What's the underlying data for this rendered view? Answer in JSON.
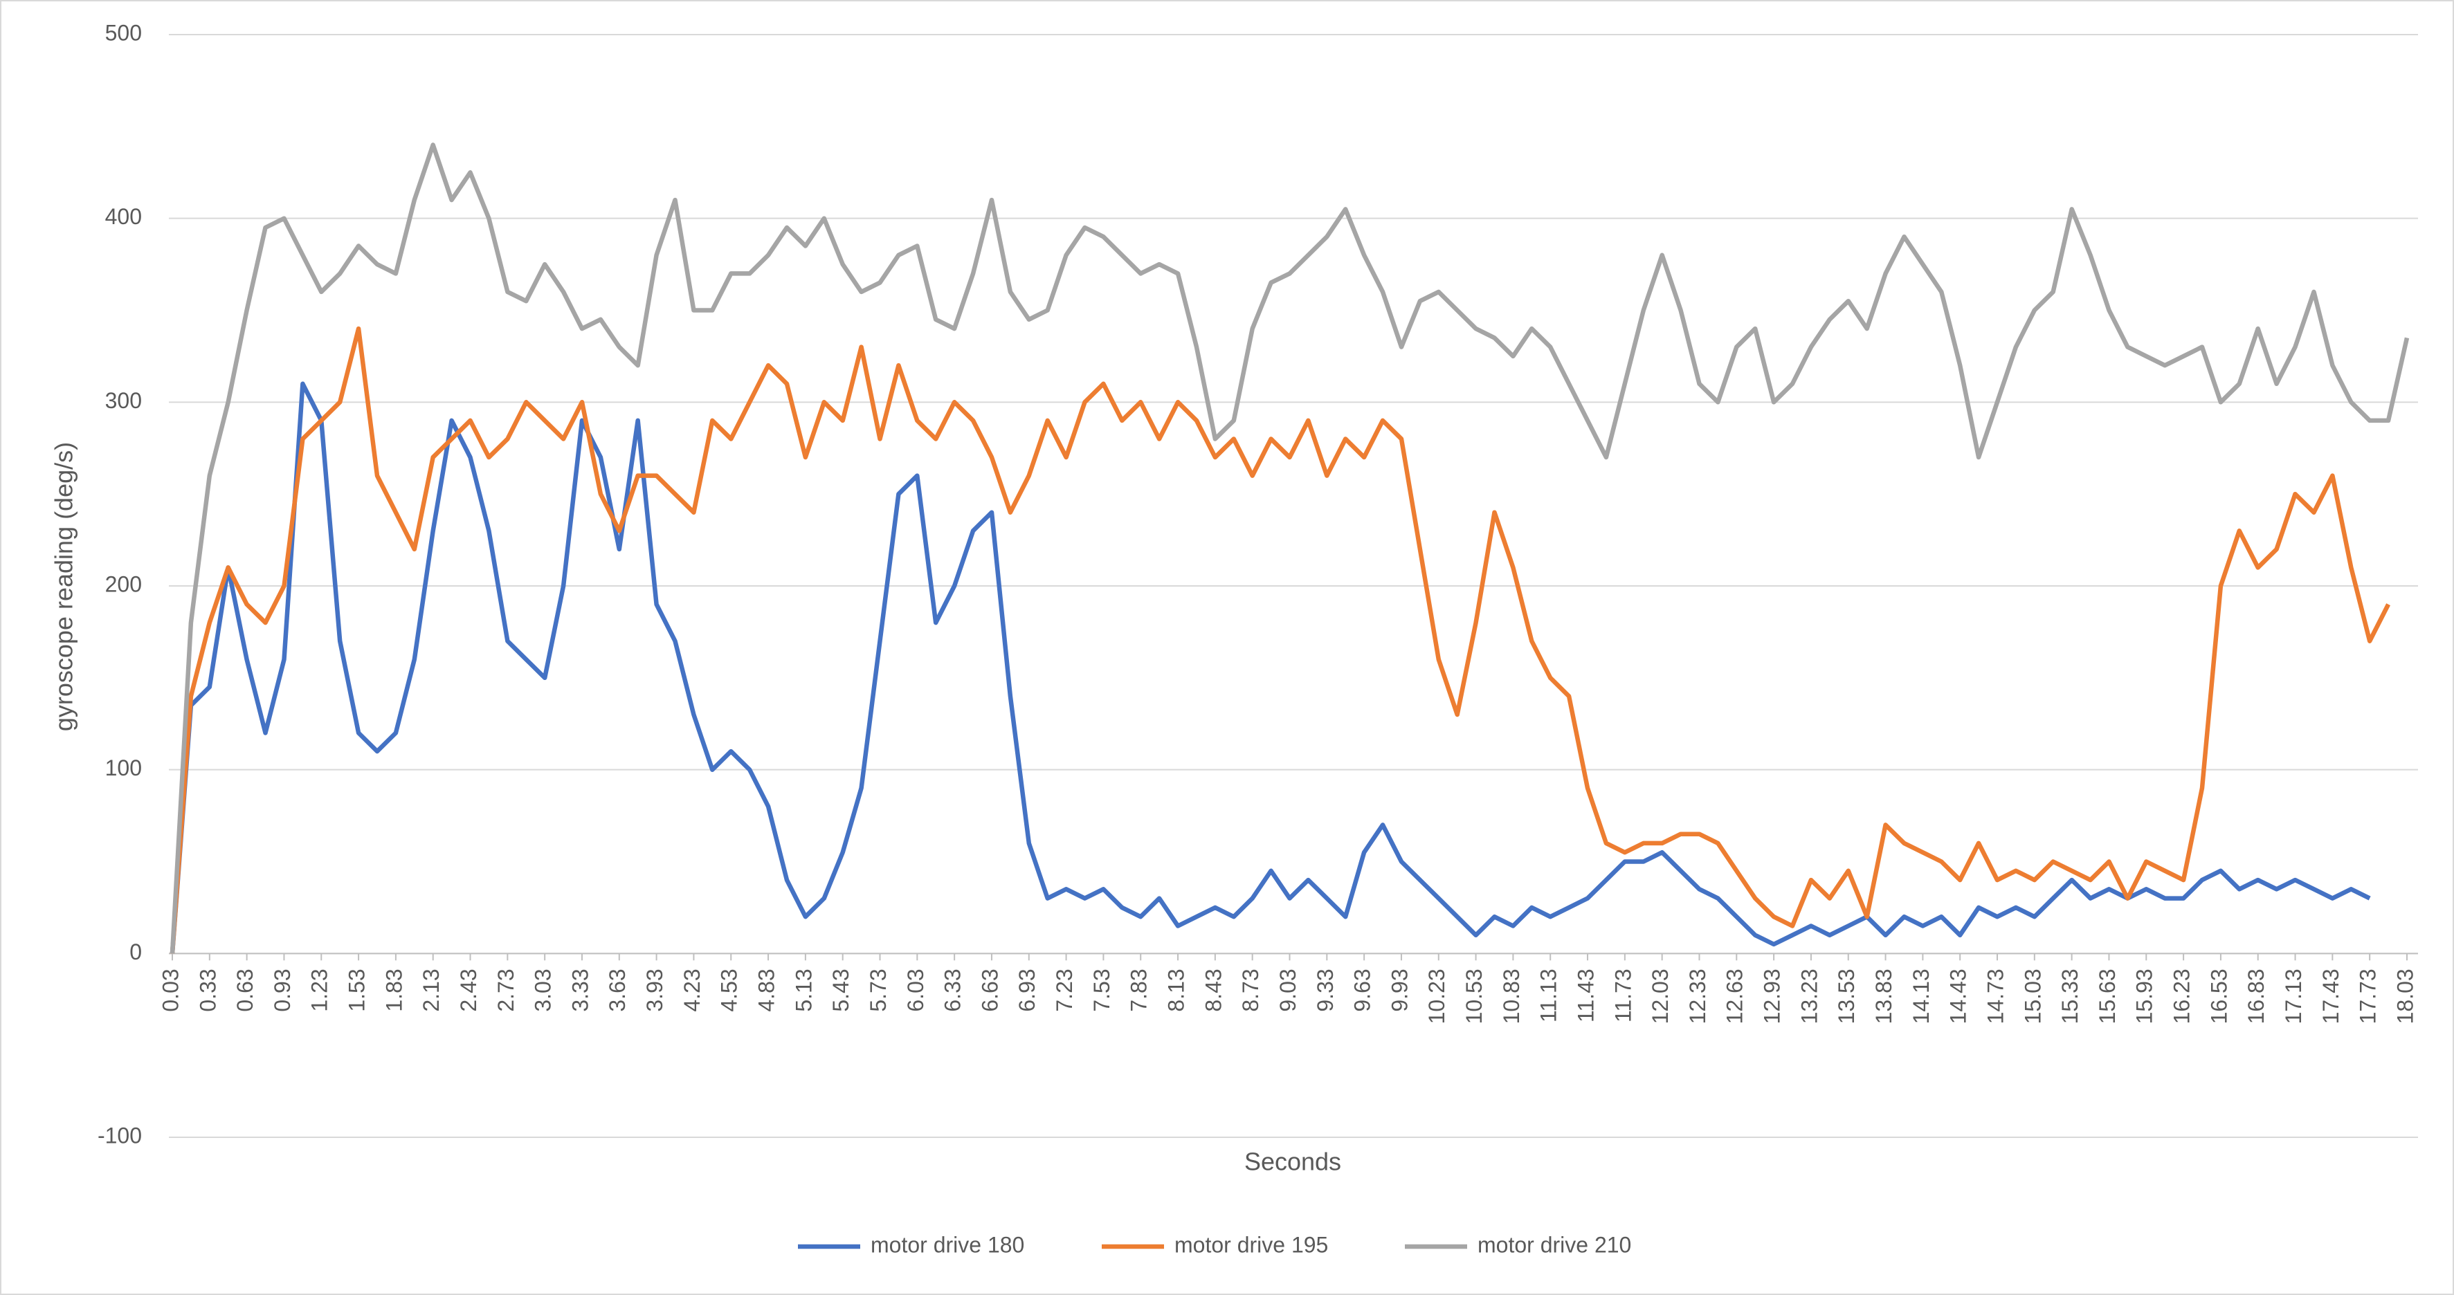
{
  "chart_data": {
    "type": "line",
    "x_label": "Seconds",
    "y_label": "gyroscope reading (deg/s)",
    "x": [
      0.03,
      0.18,
      0.33,
      0.48,
      0.63,
      0.78,
      0.93,
      1.08,
      1.23,
      1.38,
      1.53,
      1.68,
      1.83,
      1.98,
      2.13,
      2.28,
      2.43,
      2.58,
      2.73,
      2.88,
      3.03,
      3.18,
      3.33,
      3.48,
      3.63,
      3.78,
      3.93,
      4.08,
      4.23,
      4.38,
      4.53,
      4.68,
      4.83,
      4.98,
      5.13,
      5.28,
      5.43,
      5.58,
      5.73,
      5.88,
      6.03,
      6.18,
      6.33,
      6.48,
      6.63,
      6.78,
      6.93,
      7.08,
      7.23,
      7.38,
      7.53,
      7.68,
      7.83,
      7.98,
      8.13,
      8.28,
      8.43,
      8.58,
      8.73,
      8.88,
      9.03,
      9.18,
      9.33,
      9.48,
      9.63,
      9.78,
      9.93,
      10.08,
      10.23,
      10.38,
      10.53,
      10.68,
      10.83,
      10.98,
      11.13,
      11.28,
      11.43,
      11.58,
      11.73,
      11.88,
      12.03,
      12.18,
      12.33,
      12.48,
      12.63,
      12.78,
      12.93,
      13.08,
      13.23,
      13.38,
      13.53,
      13.68,
      13.83,
      13.98,
      14.13,
      14.28,
      14.43,
      14.58,
      14.73,
      14.88,
      15.03,
      15.18,
      15.33,
      15.48,
      15.63,
      15.78,
      15.93,
      16.08,
      16.23,
      16.38,
      16.53,
      16.68,
      16.83,
      16.98,
      17.13,
      17.28,
      17.43,
      17.58,
      17.73,
      17.88,
      18.03
    ],
    "series": [
      {
        "name": "motor drive 180",
        "color": "#4472c4",
        "values": [
          0,
          135,
          145,
          210,
          160,
          120,
          160,
          310,
          290,
          170,
          120,
          110,
          120,
          160,
          230,
          290,
          270,
          230,
          170,
          160,
          150,
          200,
          290,
          270,
          220,
          290,
          190,
          170,
          130,
          100,
          110,
          100,
          80,
          40,
          20,
          30,
          55,
          90,
          170,
          250,
          260,
          180,
          200,
          230,
          240,
          140,
          60,
          30,
          35,
          30,
          35,
          25,
          20,
          30,
          15,
          20,
          25,
          20,
          30,
          45,
          30,
          40,
          30,
          20,
          55,
          70,
          50,
          40,
          30,
          20,
          10,
          20,
          15,
          25,
          20,
          25,
          30,
          40,
          50,
          50,
          55,
          45,
          35,
          30,
          20,
          10,
          5,
          10,
          15,
          10,
          15,
          20,
          10,
          20,
          15,
          20,
          10,
          25,
          20,
          25,
          20,
          30,
          40,
          30,
          35,
          30,
          35,
          30,
          30,
          40,
          45,
          35,
          40,
          35,
          40,
          35,
          30,
          35,
          30,
          null,
          null
        ]
      },
      {
        "name": "motor drive 195",
        "color": "#ed7d31",
        "values": [
          0,
          140,
          180,
          210,
          190,
          180,
          200,
          280,
          290,
          300,
          340,
          260,
          240,
          220,
          270,
          280,
          290,
          270,
          280,
          300,
          290,
          280,
          300,
          250,
          230,
          260,
          260,
          250,
          240,
          290,
          280,
          300,
          320,
          310,
          270,
          300,
          290,
          330,
          280,
          320,
          290,
          280,
          300,
          290,
          270,
          240,
          260,
          290,
          270,
          300,
          310,
          290,
          300,
          280,
          300,
          290,
          270,
          280,
          260,
          280,
          270,
          290,
          260,
          280,
          270,
          290,
          280,
          220,
          160,
          130,
          180,
          240,
          210,
          170,
          150,
          140,
          90,
          60,
          55,
          60,
          60,
          65,
          65,
          60,
          45,
          30,
          20,
          15,
          40,
          30,
          45,
          20,
          70,
          60,
          55,
          50,
          40,
          60,
          40,
          45,
          40,
          50,
          45,
          40,
          50,
          30,
          50,
          45,
          40,
          90,
          200,
          230,
          210,
          220,
          250,
          240,
          260,
          210,
          170,
          190,
          null
        ]
      },
      {
        "name": "motor drive 210",
        "color": "#a5a5a5",
        "values": [
          0,
          180,
          260,
          300,
          350,
          395,
          400,
          380,
          360,
          370,
          385,
          375,
          370,
          410,
          440,
          410,
          425,
          400,
          360,
          355,
          375,
          360,
          340,
          345,
          330,
          320,
          380,
          410,
          350,
          350,
          370,
          370,
          380,
          395,
          385,
          400,
          375,
          360,
          365,
          380,
          385,
          345,
          340,
          370,
          410,
          360,
          345,
          350,
          380,
          395,
          390,
          380,
          370,
          375,
          370,
          330,
          280,
          290,
          340,
          365,
          370,
          380,
          390,
          405,
          380,
          360,
          330,
          355,
          360,
          350,
          340,
          335,
          325,
          340,
          330,
          310,
          290,
          270,
          310,
          350,
          380,
          350,
          310,
          300,
          330,
          340,
          300,
          310,
          330,
          345,
          355,
          340,
          370,
          390,
          375,
          360,
          320,
          270,
          300,
          330,
          350,
          360,
          405,
          380,
          350,
          330,
          325,
          320,
          325,
          330,
          300,
          310,
          340,
          310,
          330,
          360,
          320,
          300,
          290,
          290,
          335
        ]
      }
    ],
    "xlim": [
      0.03,
      18.03
    ],
    "xticks": [
      0.03,
      0.33,
      0.63,
      0.93,
      1.23,
      1.53,
      1.83,
      2.13,
      2.43,
      2.73,
      3.03,
      3.33,
      3.63,
      3.93,
      4.23,
      4.53,
      4.83,
      5.13,
      5.43,
      5.73,
      6.03,
      6.33,
      6.63,
      6.93,
      7.23,
      7.53,
      7.83,
      8.13,
      8.43,
      8.73,
      9.03,
      9.33,
      9.63,
      9.93,
      10.23,
      10.53,
      10.83,
      11.13,
      11.43,
      11.73,
      12.03,
      12.33,
      12.63,
      12.93,
      13.23,
      13.53,
      13.83,
      14.13,
      14.43,
      14.73,
      15.03,
      15.33,
      15.63,
      15.93,
      16.23,
      16.53,
      16.83,
      17.13,
      17.43,
      17.73,
      18.03
    ],
    "ylim": [
      -100,
      500
    ],
    "yticks": [
      -100,
      0,
      100,
      200,
      300,
      400,
      500
    ],
    "grid": true,
    "legend": "bottom"
  }
}
